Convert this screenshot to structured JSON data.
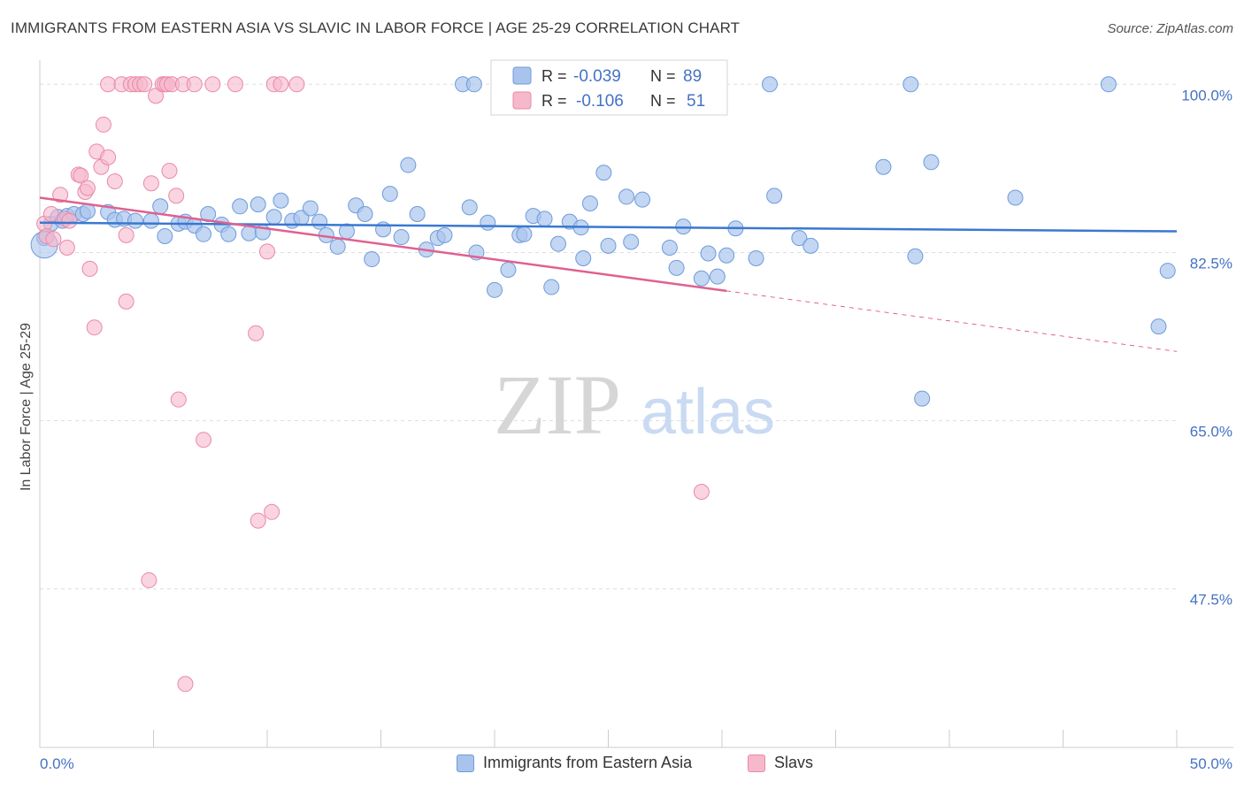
{
  "title": "IMMIGRANTS FROM EASTERN ASIA VS SLAVIC IN LABOR FORCE | AGE 25-29 CORRELATION CHART",
  "source": "Source: ZipAtlas.com",
  "watermark": {
    "zip": "ZIP",
    "atlas": "atlas"
  },
  "legend": {
    "r_label": "R =",
    "n_label": "N =",
    "rows": [
      {
        "r": "-0.039",
        "n": "89"
      },
      {
        "r": "-0.106",
        "n": "51"
      }
    ]
  },
  "bottom_legend": [
    "Immigrants from Eastern Asia",
    "Slavs"
  ],
  "colors": {
    "blue_fill": "#a9c4ec",
    "blue_stroke": "#6e9bdc",
    "blue_line": "#3a78d0",
    "pink_fill": "#f6b8cb",
    "pink_stroke": "#e98aa8",
    "pink_line": "#e06090",
    "axis_label": "#4472c4",
    "grid": "#dddddd"
  },
  "chart_data": {
    "type": "scatter",
    "title": "IMMIGRANTS FROM EASTERN ASIA VS SLAVIC IN LABOR FORCE | AGE 25-29 CORRELATION CHART",
    "xlabel": "",
    "ylabel": "In Labor Force | Age 25-29",
    "xlim": [
      0,
      50
    ],
    "ylim": [
      31,
      101.5
    ],
    "x_tick_labels": [
      "0.0%",
      "50.0%"
    ],
    "y_ticks": [
      100,
      82.5,
      65,
      47.5
    ],
    "y_tick_labels": [
      "100.0%",
      "82.5%",
      "65.0%",
      "47.5%"
    ],
    "grid": true,
    "legend_position": "top-center",
    "series": [
      {
        "name": "Immigrants from Eastern Asia",
        "r": -0.039,
        "n": 89,
        "trend": {
          "x": [
            0,
            50
          ],
          "y": [
            85.6,
            84.7
          ],
          "dashed_after": null
        },
        "points": [
          [
            0.2,
            84
          ],
          [
            0.5,
            85.5
          ],
          [
            0.8,
            86.2
          ],
          [
            1.0,
            85.8
          ],
          [
            1.2,
            86.3
          ],
          [
            1.5,
            86.5
          ],
          [
            1.9,
            86.5
          ],
          [
            2.1,
            86.8
          ],
          [
            3.0,
            86.7
          ],
          [
            3.3,
            85.9
          ],
          [
            3.7,
            86.0
          ],
          [
            4.2,
            85.8
          ],
          [
            4.9,
            85.8
          ],
          [
            5.3,
            87.3
          ],
          [
            5.5,
            84.2
          ],
          [
            6.1,
            85.5
          ],
          [
            6.4,
            85.7
          ],
          [
            6.8,
            85.3
          ],
          [
            7.2,
            84.4
          ],
          [
            7.4,
            86.5
          ],
          [
            8.0,
            85.4
          ],
          [
            8.3,
            84.4
          ],
          [
            8.8,
            87.3
          ],
          [
            9.2,
            84.5
          ],
          [
            9.6,
            87.5
          ],
          [
            9.8,
            84.6
          ],
          [
            10.3,
            86.2
          ],
          [
            10.6,
            87.9
          ],
          [
            11.1,
            85.8
          ],
          [
            11.5,
            86.1
          ],
          [
            11.9,
            87.1
          ],
          [
            12.3,
            85.7
          ],
          [
            12.6,
            84.3
          ],
          [
            13.1,
            83.1
          ],
          [
            13.5,
            84.7
          ],
          [
            13.9,
            87.4
          ],
          [
            14.3,
            86.5
          ],
          [
            14.6,
            81.8
          ],
          [
            15.1,
            84.9
          ],
          [
            15.4,
            88.6
          ],
          [
            15.9,
            84.1
          ],
          [
            16.2,
            91.6
          ],
          [
            16.6,
            86.5
          ],
          [
            17.0,
            82.8
          ],
          [
            17.5,
            84.0
          ],
          [
            17.8,
            84.3
          ],
          [
            18.6,
            100
          ],
          [
            18.9,
            87.2
          ],
          [
            19.2,
            82.5
          ],
          [
            19.1,
            100
          ],
          [
            19.7,
            85.6
          ],
          [
            20.0,
            78.6
          ],
          [
            20.6,
            80.7
          ],
          [
            21.1,
            84.3
          ],
          [
            21.3,
            84.4
          ],
          [
            21.7,
            86.3
          ],
          [
            22.2,
            86.0
          ],
          [
            22.5,
            78.9
          ],
          [
            22.8,
            83.4
          ],
          [
            23.3,
            85.7
          ],
          [
            23.8,
            85.1
          ],
          [
            23.9,
            81.9
          ],
          [
            24.2,
            87.6
          ],
          [
            24.8,
            90.8
          ],
          [
            25.0,
            83.2
          ],
          [
            25.8,
            88.3
          ],
          [
            26.0,
            83.6
          ],
          [
            26.5,
            88.0
          ],
          [
            27.7,
            83.0
          ],
          [
            28.0,
            80.9
          ],
          [
            28.3,
            85.2
          ],
          [
            29.1,
            79.8
          ],
          [
            29.4,
            82.4
          ],
          [
            29.8,
            80.0
          ],
          [
            30.2,
            82.2
          ],
          [
            30.6,
            85.0
          ],
          [
            31.5,
            81.9
          ],
          [
            32.1,
            100
          ],
          [
            32.3,
            88.4
          ],
          [
            33.4,
            84.0
          ],
          [
            33.9,
            83.2
          ],
          [
            37.1,
            91.4
          ],
          [
            38.3,
            100
          ],
          [
            38.5,
            82.1
          ],
          [
            38.8,
            67.3
          ],
          [
            39.2,
            91.9
          ],
          [
            42.9,
            88.2
          ],
          [
            47.0,
            100
          ],
          [
            49.6,
            80.6
          ],
          [
            49.2,
            74.8
          ]
        ]
      },
      {
        "name": "Slavs",
        "r": -0.106,
        "n": 51,
        "trend": {
          "x": [
            0,
            30.2,
            50
          ],
          "y": [
            88.2,
            78.5,
            72.2
          ],
          "dashed_after": 30.2
        },
        "points": [
          [
            0.2,
            85.5
          ],
          [
            0.3,
            84.2
          ],
          [
            0.5,
            86.5
          ],
          [
            0.6,
            83.9
          ],
          [
            0.9,
            88.5
          ],
          [
            1.1,
            86.0
          ],
          [
            1.2,
            83.0
          ],
          [
            1.3,
            85.8
          ],
          [
            1.7,
            90.6
          ],
          [
            1.8,
            90.5
          ],
          [
            2.0,
            88.8
          ],
          [
            2.1,
            89.2
          ],
          [
            2.2,
            80.8
          ],
          [
            2.4,
            74.7
          ],
          [
            2.5,
            93.0
          ],
          [
            2.7,
            91.4
          ],
          [
            2.8,
            95.8
          ],
          [
            3.0,
            92.4
          ],
          [
            3.3,
            89.9
          ],
          [
            3.0,
            100
          ],
          [
            3.6,
            100
          ],
          [
            3.8,
            84.3
          ],
          [
            3.8,
            77.4
          ],
          [
            4.0,
            100
          ],
          [
            4.2,
            100
          ],
          [
            4.4,
            100
          ],
          [
            4.6,
            100
          ],
          [
            4.8,
            48.4
          ],
          [
            4.9,
            89.7
          ],
          [
            5.1,
            98.8
          ],
          [
            5.4,
            100
          ],
          [
            5.5,
            100
          ],
          [
            5.6,
            100
          ],
          [
            5.7,
            91.0
          ],
          [
            5.8,
            100
          ],
          [
            6.0,
            88.4
          ],
          [
            6.1,
            67.2
          ],
          [
            6.3,
            100
          ],
          [
            6.4,
            37.6
          ],
          [
            6.8,
            100
          ],
          [
            7.2,
            63.0
          ],
          [
            7.6,
            100
          ],
          [
            8.6,
            100
          ],
          [
            9.5,
            74.1
          ],
          [
            9.6,
            54.6
          ],
          [
            10.0,
            82.6
          ],
          [
            10.2,
            55.5
          ],
          [
            10.3,
            100
          ],
          [
            10.6,
            100
          ],
          [
            11.3,
            100
          ],
          [
            29.1,
            57.6
          ]
        ]
      }
    ]
  }
}
